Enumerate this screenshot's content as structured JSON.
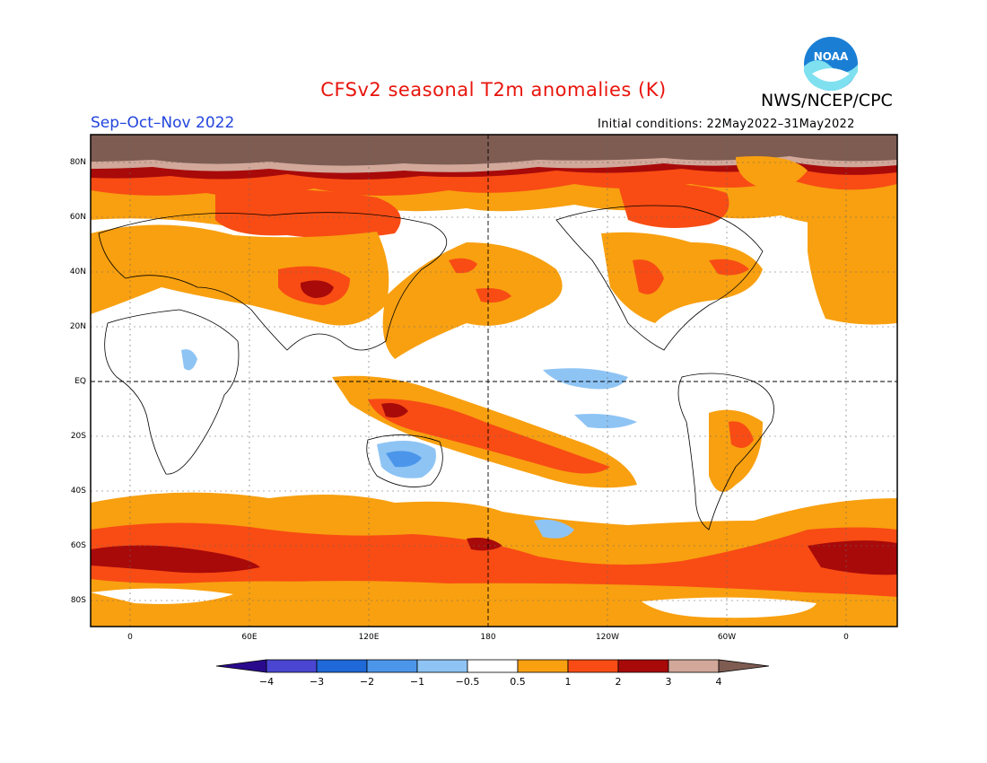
{
  "title": "CFSv2 seasonal T2m anomalies (K)",
  "agency": "NWS/NCEP/CPC",
  "logo_text": "NOAA",
  "season": "Sep–Oct–Nov 2022",
  "initial_conditions": "Initial conditions: 22May2022–31May2022",
  "map": {
    "x_tick_labels": [
      "0",
      "60E",
      "120E",
      "180",
      "120W",
      "60W",
      "0"
    ],
    "y_tick_labels": [
      "80N",
      "60N",
      "40N",
      "20N",
      "EQ",
      "20S",
      "40S",
      "60S",
      "80S"
    ]
  },
  "colorbar": {
    "labels": [
      "−4",
      "−3",
      "−2",
      "−1",
      "−0.5",
      "0.5",
      "1",
      "2",
      "3",
      "4"
    ],
    "colors": [
      "#2a0a8c",
      "#4a46d2",
      "#1f69d8",
      "#4b96ea",
      "#8ec4f4",
      "#ffffff",
      "#f8a010",
      "#f84c14",
      "#a80a0a",
      "#d2a89a",
      "#7e5c52"
    ]
  },
  "colors": {
    "pos_05_1": "#f8a010",
    "pos_1_2": "#f84c14",
    "pos_2_3": "#a80a0a",
    "pos_3_4": "#d2a89a",
    "pos_gt4": "#7e5c52",
    "neg_05_1": "#8ec4f4",
    "neg_1_2": "#4b96ea"
  }
}
